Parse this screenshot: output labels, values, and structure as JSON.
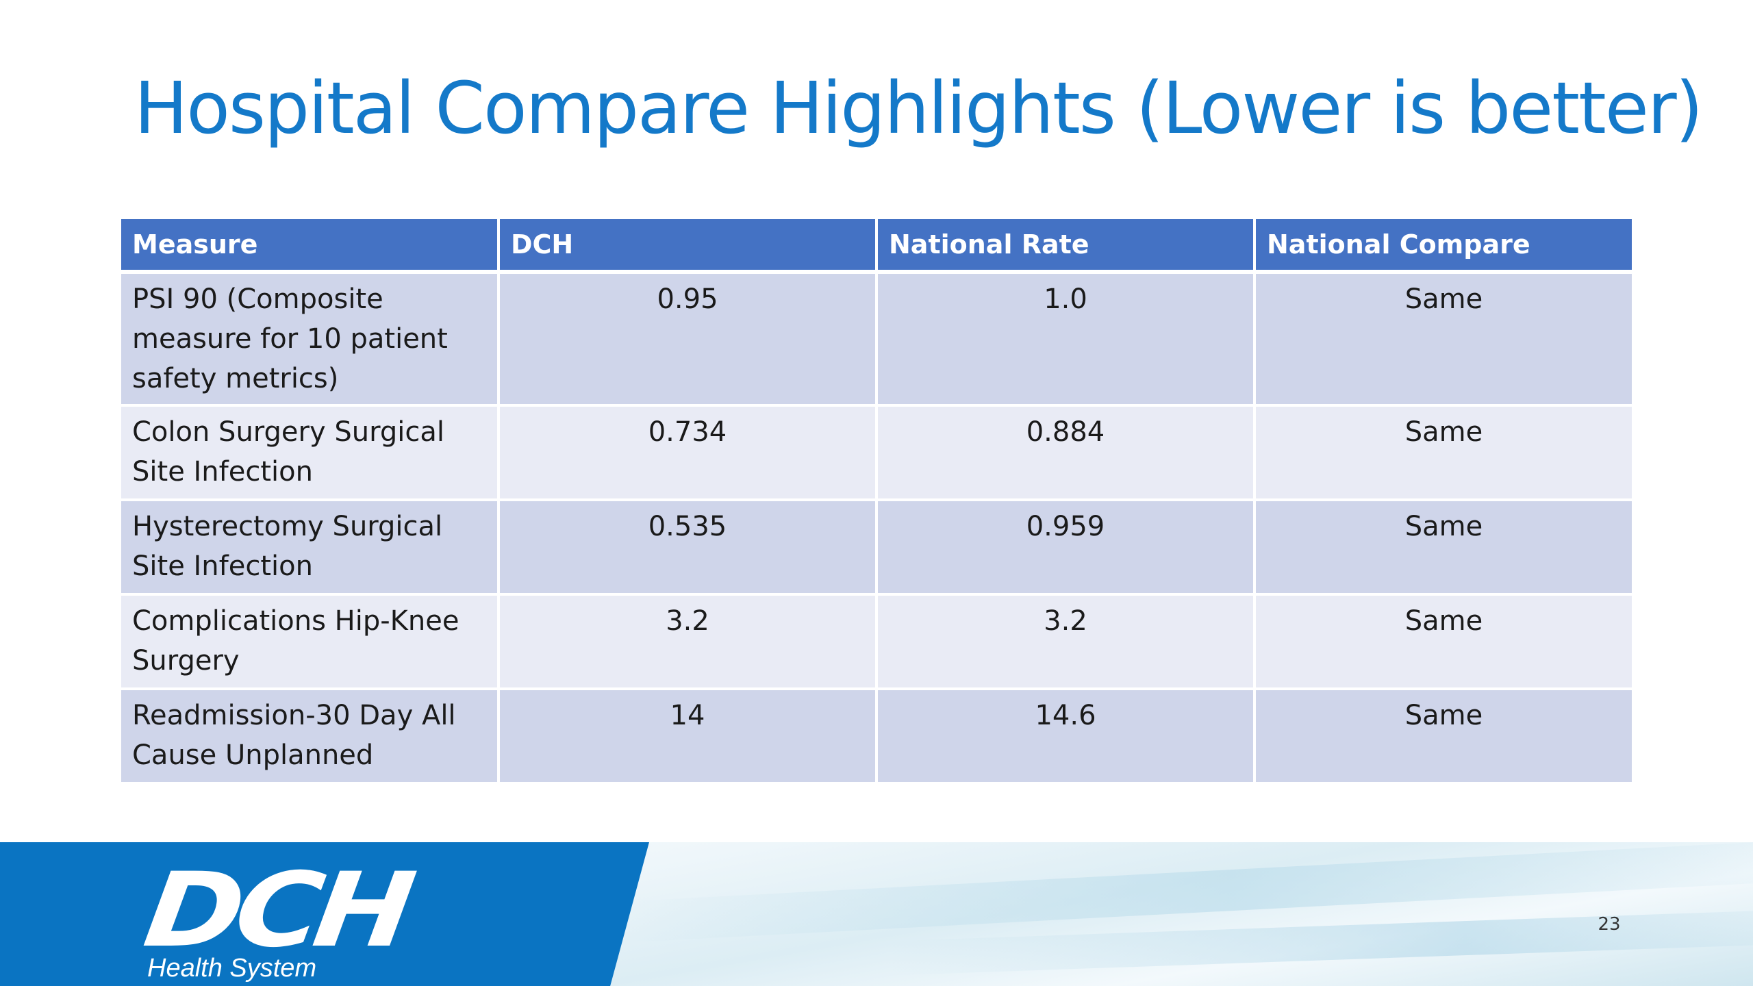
{
  "slide": {
    "title": "Hospital Compare Highlights (Lower is better)",
    "page_number": "23"
  },
  "table": {
    "headers": [
      "Measure",
      "DCH",
      "National Rate",
      "National Compare"
    ],
    "rows": [
      {
        "measure": "PSI 90 (Composite measure for 10 patient safety metrics)",
        "dch": "0.95",
        "national_rate": "1.0",
        "national_compare": "Same"
      },
      {
        "measure": "Colon Surgery Surgical Site Infection",
        "dch": "0.734",
        "national_rate": "0.884",
        "national_compare": "Same"
      },
      {
        "measure": "Hysterectomy Surgical Site Infection",
        "dch": "0.535",
        "national_rate": "0.959",
        "national_compare": "Same"
      },
      {
        "measure": "Complications Hip-Knee Surgery",
        "dch": "3.2",
        "national_rate": "3.2",
        "national_compare": "Same"
      },
      {
        "measure": "Readmission-30 Day All Cause Unplanned",
        "dch": "14",
        "national_rate": "14.6",
        "national_compare": "Same"
      }
    ]
  },
  "footer": {
    "logo_mark": "DCH",
    "logo_subtitle": "Health System"
  },
  "colors": {
    "title": "#1479c9",
    "header_bg": "#4472c4",
    "row_odd_bg": "#cfd5ea",
    "row_even_bg": "#e9ebf5",
    "footer_blue": "#0a74c2"
  }
}
